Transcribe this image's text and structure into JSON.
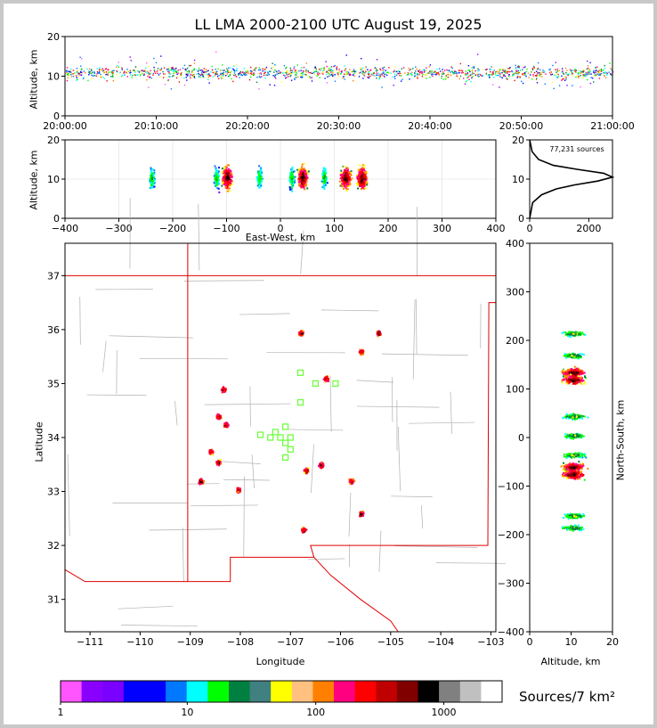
{
  "title": "LL LMA 2000-2100 UTC August 19, 2025",
  "colorbar": {
    "label": "Sources/7 km²",
    "ticks": [
      "1",
      "10",
      "100",
      "1000"
    ],
    "colors": [
      "#ff55ff",
      "#8a00ff",
      "#7a00ff",
      "#0000ff",
      "#0000ff",
      "#0078ff",
      "#00ffff",
      "#00ff00",
      "#008040",
      "#408080",
      "#ffff00",
      "#ffc080",
      "#ff8000",
      "#ff0080",
      "#ff0000",
      "#c00000",
      "#800000",
      "#000000",
      "#808080",
      "#c0c0c0",
      "#ffffff"
    ]
  },
  "chart_data": [
    {
      "id": "time-altitude",
      "type": "heatmap",
      "xlabel": "",
      "ylabel": "Altitude, km",
      "xticks": [
        "20:00:00",
        "20:10:00",
        "20:20:00",
        "20:30:00",
        "20:40:00",
        "20:50:00",
        "21:00:00"
      ],
      "ylim": [
        0,
        20
      ],
      "yticks": [
        0,
        10,
        20
      ],
      "dense_band_km": [
        7,
        15
      ]
    },
    {
      "id": "eastwest-altitude",
      "type": "heatmap",
      "xlabel": "East-West, km",
      "ylabel": "Altitude, km",
      "xlim": [
        -400,
        400
      ],
      "xticks": [
        -400,
        -300,
        -200,
        -100,
        0,
        100,
        200,
        300,
        400
      ],
      "ylim": [
        0,
        20
      ],
      "yticks": [
        0,
        10,
        20
      ],
      "clusters_km": [
        -240,
        -120,
        -100,
        -40,
        20,
        40,
        80,
        120,
        150
      ]
    },
    {
      "id": "altitude-histogram",
      "type": "line",
      "annotation": "77,231 sources",
      "xticks": [
        0,
        2000
      ],
      "yticks": [
        0,
        10,
        20
      ],
      "xlim": [
        0,
        2800
      ],
      "ylim": [
        0,
        20
      ],
      "profile": [
        [
          0,
          0
        ],
        [
          100,
          4
        ],
        [
          400,
          6
        ],
        [
          900,
          7.5
        ],
        [
          1500,
          8.5
        ],
        [
          2300,
          9.5
        ],
        [
          2800,
          10.5
        ],
        [
          2500,
          11.5
        ],
        [
          1600,
          12.5
        ],
        [
          800,
          13.5
        ],
        [
          300,
          15
        ],
        [
          80,
          17
        ],
        [
          0,
          20
        ]
      ]
    },
    {
      "id": "plan-view",
      "type": "scatter",
      "xlabel": "Longitude",
      "ylabel": "Latitude",
      "xlim": [
        -111.5,
        -102.9
      ],
      "ylim": [
        30.4,
        37.6
      ],
      "xticks": [
        "−111",
        "−110",
        "−109",
        "−108",
        "−107",
        "−106",
        "−105",
        "−104",
        "−103"
      ],
      "yticks": [
        "31",
        "32",
        "33",
        "34",
        "35",
        "36",
        "37"
      ],
      "clusters": [
        {
          "lon": -105.6,
          "lat": 35.6
        },
        {
          "lon": -105.25,
          "lat": 35.95
        },
        {
          "lon": -106.3,
          "lat": 35.1
        },
        {
          "lon": -106.8,
          "lat": 35.95
        },
        {
          "lon": -108.35,
          "lat": 34.9
        },
        {
          "lon": -108.45,
          "lat": 34.4
        },
        {
          "lon": -108.3,
          "lat": 34.25
        },
        {
          "lon": -108.45,
          "lat": 33.55
        },
        {
          "lon": -108.6,
          "lat": 33.75
        },
        {
          "lon": -108.8,
          "lat": 33.2
        },
        {
          "lon": -108.05,
          "lat": 33.05
        },
        {
          "lon": -106.7,
          "lat": 33.4
        },
        {
          "lon": -106.4,
          "lat": 33.5
        },
        {
          "lon": -105.8,
          "lat": 33.2
        },
        {
          "lon": -105.6,
          "lat": 32.6
        },
        {
          "lon": -106.75,
          "lat": 32.3
        }
      ],
      "stations": [
        [
          -106.8,
          35.2
        ],
        [
          -106.5,
          35.0
        ],
        [
          -106.1,
          35.0
        ],
        [
          -106.8,
          34.65
        ],
        [
          -107.1,
          34.2
        ],
        [
          -107.3,
          34.1
        ],
        [
          -107.4,
          34.0
        ],
        [
          -107.2,
          34.0
        ],
        [
          -107.0,
          34.0
        ],
        [
          -107.1,
          33.9
        ],
        [
          -107.0,
          33.78
        ],
        [
          -107.1,
          33.63
        ],
        [
          -107.6,
          34.05
        ]
      ]
    },
    {
      "id": "altitude-northsouth",
      "type": "heatmap",
      "xlabel": "Altitude, km",
      "ylabel": "North-South, km",
      "xlim": [
        0,
        20
      ],
      "xticks": [
        0,
        10,
        20
      ],
      "ylim": [
        -400,
        400
      ],
      "yticks": [
        400,
        300,
        200,
        100,
        0,
        -100,
        -200,
        -300,
        -400
      ],
      "clusters_km": [
        215,
        170,
        135,
        120,
        45,
        5,
        -35,
        -60,
        -75,
        -160,
        -185
      ]
    }
  ]
}
